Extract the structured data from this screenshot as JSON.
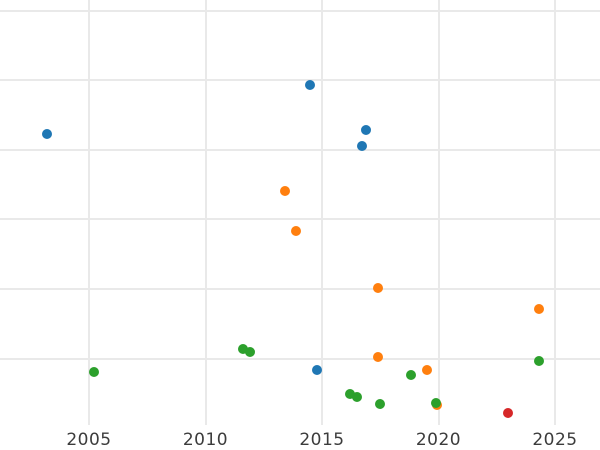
{
  "chart_data": {
    "type": "scatter",
    "title": "",
    "xlabel": "",
    "ylabel": "",
    "x_axis": {
      "tick_labels": [
        "2005",
        "2010",
        "2015",
        "2020",
        "2025"
      ],
      "tick_values": [
        2005,
        2010,
        2015,
        2020,
        2025
      ],
      "range": [
        2001.2,
        2026.9
      ],
      "tick_label_color": "#3c3c3c"
    },
    "y_axis": {
      "tick_labels": [],
      "note": "y-axis labels not visible in image; values given in gridline units (1 unit per horizontal gridline, 0 at bottom edge)",
      "gridline_units": [
        1,
        2,
        3,
        4,
        5,
        6
      ],
      "range": [
        0,
        6.15
      ]
    },
    "grid": true,
    "grid_color": "#e9e9e9",
    "background_color": "#ffffff",
    "legend": "none",
    "marker_diameter_px": 10,
    "series": [
      {
        "name": "blue-series",
        "color": "#1f77b4",
        "points": [
          {
            "x": 2003.2,
            "y": 4.22
          },
          {
            "x": 2014.5,
            "y": 4.93
          },
          {
            "x": 2016.9,
            "y": 4.28
          },
          {
            "x": 2016.7,
            "y": 4.05
          },
          {
            "x": 2014.8,
            "y": 0.84
          }
        ]
      },
      {
        "name": "orange-series",
        "color": "#ff7f0e",
        "points": [
          {
            "x": 2013.4,
            "y": 3.4
          },
          {
            "x": 2013.9,
            "y": 2.83
          },
          {
            "x": 2017.4,
            "y": 2.02
          },
          {
            "x": 2017.4,
            "y": 1.02
          },
          {
            "x": 2019.5,
            "y": 0.84
          },
          {
            "x": 2019.95,
            "y": 0.33
          },
          {
            "x": 2024.3,
            "y": 1.71
          }
        ]
      },
      {
        "name": "green-series",
        "color": "#2ca02c",
        "points": [
          {
            "x": 2005.2,
            "y": 0.8
          },
          {
            "x": 2011.6,
            "y": 1.14
          },
          {
            "x": 2011.9,
            "y": 1.09
          },
          {
            "x": 2016.2,
            "y": 0.49
          },
          {
            "x": 2016.5,
            "y": 0.45
          },
          {
            "x": 2017.5,
            "y": 0.35
          },
          {
            "x": 2018.8,
            "y": 0.76
          },
          {
            "x": 2019.9,
            "y": 0.36
          },
          {
            "x": 2024.3,
            "y": 0.97
          }
        ]
      },
      {
        "name": "red-series",
        "color": "#d62728",
        "points": [
          {
            "x": 2023.0,
            "y": 0.21
          }
        ]
      }
    ]
  }
}
